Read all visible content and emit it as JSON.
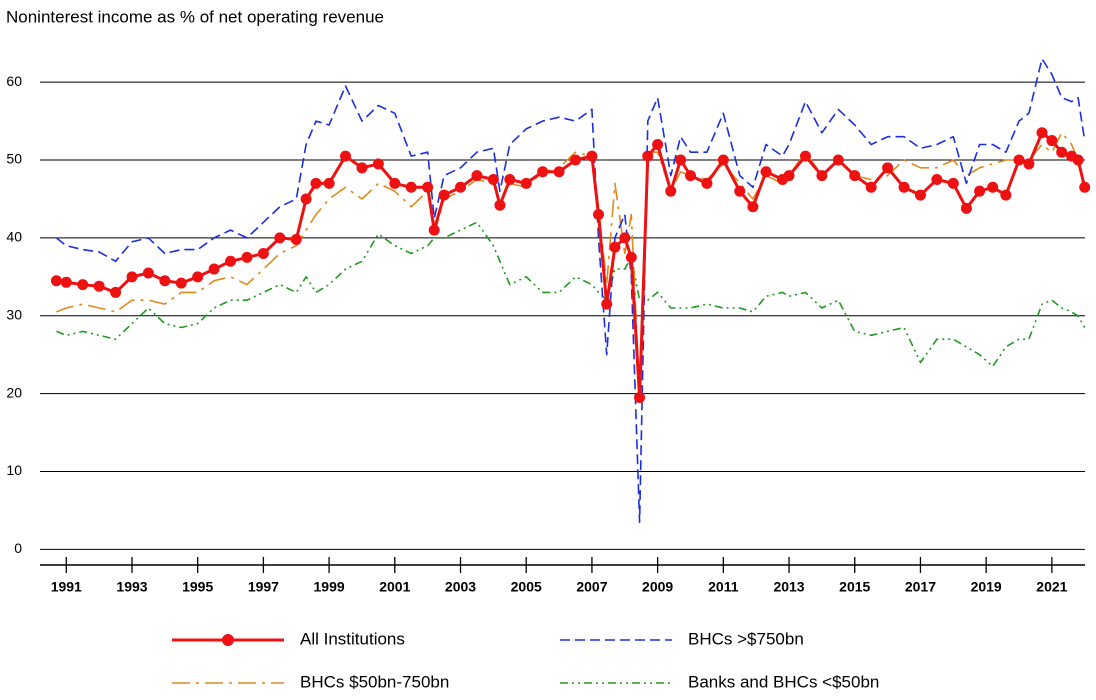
{
  "chart_data": {
    "type": "line",
    "title": "Noninterest income as % of net operating revenue",
    "x": [
      1990.7,
      1991,
      1991.5,
      1992,
      1992.5,
      1993,
      1993.5,
      1994,
      1994.5,
      1995,
      1995.5,
      1996,
      1996.5,
      1997,
      1997.5,
      1998,
      1998.3,
      1998.6,
      1999,
      1999.5,
      2000,
      2000.5,
      2001,
      2001.5,
      2002,
      2002.2,
      2002.5,
      2003,
      2003.5,
      2004,
      2004.2,
      2004.5,
      2005,
      2005.5,
      2006,
      2006.5,
      2007,
      2007.2,
      2007.45,
      2007.7,
      2008,
      2008.2,
      2008.45,
      2008.7,
      2009,
      2009.4,
      2009.7,
      2010,
      2010.5,
      2011,
      2011.5,
      2011.9,
      2012.3,
      2012.8,
      2013,
      2013.5,
      2014,
      2014.5,
      2015,
      2015.5,
      2016,
      2016.5,
      2017,
      2017.5,
      2018,
      2018.4,
      2018.8,
      2019.2,
      2019.6,
      2020,
      2020.3,
      2020.7,
      2021,
      2021.3,
      2021.6,
      2021.8,
      2022
    ],
    "series": [
      {
        "name": "All Institutions",
        "color": "#ee1111",
        "style": "solid-marker",
        "values": [
          34.5,
          34.3,
          34,
          33.8,
          33,
          35,
          35.5,
          34.5,
          34.2,
          35,
          36,
          37,
          37.5,
          38,
          40,
          39.8,
          45,
          47,
          47,
          50.5,
          49,
          49.5,
          47,
          46.5,
          46.5,
          41,
          45.5,
          46.5,
          48,
          47.5,
          44.2,
          47.5,
          47,
          48.5,
          48.5,
          50,
          50.5,
          43,
          31.5,
          38.8,
          40,
          37.5,
          19.5,
          50.5,
          52,
          46,
          50,
          48,
          47,
          50,
          46,
          44,
          48.5,
          47.5,
          48,
          50.5,
          48,
          50,
          48,
          46.5,
          49,
          46.5,
          45.5,
          47.5,
          47,
          43.8,
          46,
          46.5,
          45.5,
          50,
          49.5,
          53.5,
          52.5,
          51,
          50.5,
          50,
          46.5
        ]
      },
      {
        "name": "BHCs >$750bn",
        "color": "#1c2fe0",
        "style": "dash",
        "values": [
          40,
          39,
          38.5,
          38.2,
          37,
          39.5,
          40,
          38,
          38.5,
          38.5,
          40,
          41,
          40,
          42,
          44,
          45,
          52,
          55,
          54.5,
          59.5,
          55,
          57,
          56,
          50.5,
          51,
          42.5,
          48,
          49,
          51,
          51.5,
          46,
          52,
          54,
          55,
          55.5,
          55,
          56.5,
          40,
          25,
          40,
          43,
          35,
          3.5,
          55,
          58,
          48,
          53,
          51,
          51,
          56,
          48,
          46.5,
          52,
          50.5,
          52,
          57.5,
          53.5,
          56.5,
          54.5,
          52,
          53,
          53,
          51.5,
          52,
          53,
          47,
          52,
          52,
          51,
          55,
          56,
          63,
          61,
          58,
          57.5,
          58,
          52.5
        ]
      },
      {
        "name": "BHCs $50bn-750bn",
        "color": "#e08a1e",
        "style": "dashdot",
        "values": [
          30.5,
          31,
          31.5,
          31,
          30.5,
          32,
          32,
          31.5,
          33,
          33,
          34.5,
          35,
          34,
          36,
          38,
          39,
          41,
          43,
          45,
          46.5,
          45,
          47,
          46,
          44,
          46,
          40.5,
          45,
          46,
          47.5,
          47,
          44.5,
          47,
          46.5,
          48.5,
          49,
          51,
          50.5,
          44,
          34,
          47,
          38,
          43,
          20,
          51,
          51,
          46,
          48.5,
          48,
          47.5,
          49.5,
          47,
          45,
          48,
          47,
          48,
          51,
          48,
          50,
          48,
          47.5,
          48,
          50,
          49,
          49,
          50,
          48,
          49,
          49.5,
          50,
          50,
          50,
          52,
          51,
          53.5,
          52,
          50,
          46
        ]
      },
      {
        "name": "Banks and BHCs <$50bn",
        "color": "#1e9a1e",
        "style": "dashdotdot",
        "values": [
          28,
          27.5,
          28,
          27.5,
          27,
          29,
          31,
          29,
          28.5,
          29,
          31,
          32,
          32,
          33,
          34,
          33,
          35,
          33,
          34,
          36,
          37,
          40.5,
          39,
          38,
          39,
          40,
          40,
          41,
          42,
          39,
          37,
          34,
          35,
          33,
          33,
          35,
          34,
          33,
          32,
          36,
          36,
          37.5,
          32,
          32,
          33,
          31,
          31,
          31,
          31.5,
          31,
          31,
          30.5,
          32.5,
          33,
          32.5,
          33,
          31,
          32,
          28,
          27.5,
          28,
          28.5,
          24,
          27,
          27,
          26,
          25,
          23.5,
          26,
          27,
          27,
          31.5,
          32,
          31,
          30.5,
          30,
          28.5
        ]
      }
    ],
    "xlim": [
      1990.2,
      2022.1
    ],
    "xticks": [
      1991,
      1993,
      1995,
      1997,
      1999,
      2001,
      2003,
      2005,
      2007,
      2009,
      2011,
      2013,
      2015,
      2017,
      2019,
      2021
    ],
    "ylim": [
      -2,
      64
    ],
    "yticks": [
      0,
      10,
      20,
      30,
      40,
      50,
      60
    ],
    "grid": true
  }
}
